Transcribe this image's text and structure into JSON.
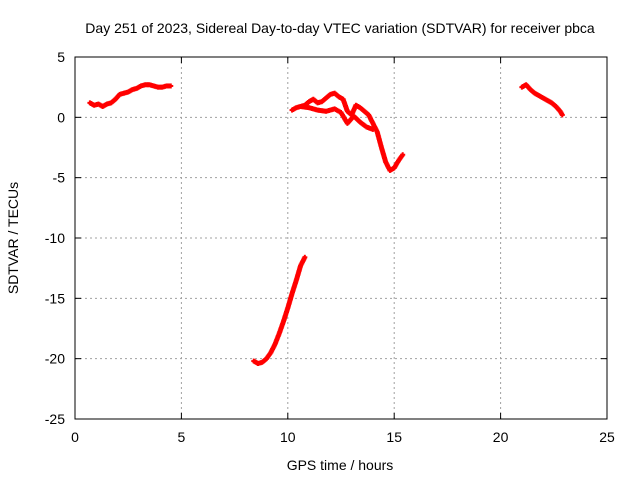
{
  "chart_data": {
    "type": "scatter",
    "title": "Day 251 of 2023, Sidereal Day-to-day VTEC variation (SDTVAR) for receiver pbca",
    "xlabel": "GPS time / hours",
    "ylabel": "SDTVAR / TECUs",
    "xlim": [
      0,
      25
    ],
    "ylim": [
      -25,
      5
    ],
    "xticks": [
      0,
      5,
      10,
      15,
      20,
      25
    ],
    "yticks": [
      5,
      0,
      -5,
      -10,
      -15,
      -20,
      -25
    ],
    "xtick_labels": [
      "0",
      "5",
      "10",
      "15",
      "20",
      "25"
    ],
    "ytick_labels": [
      "5",
      "0",
      "-5",
      "-10",
      "-15",
      "-20",
      "-25"
    ],
    "grid": true,
    "marker": "plus",
    "color": "#ff0000",
    "series": [
      {
        "name": "segment-1",
        "x": [
          0.7,
          0.9,
          1.1,
          1.3,
          1.5,
          1.7,
          1.9,
          2.1,
          2.3,
          2.5,
          2.7,
          2.9,
          3.1,
          3.3,
          3.5,
          3.7,
          3.9,
          4.1,
          4.3,
          4.5
        ],
        "y": [
          1.2,
          1.0,
          1.1,
          0.9,
          1.1,
          1.2,
          1.5,
          1.9,
          2.0,
          2.1,
          2.3,
          2.4,
          2.6,
          2.7,
          2.7,
          2.6,
          2.5,
          2.5,
          2.6,
          2.6
        ]
      },
      {
        "name": "segment-2",
        "x": [
          8.4,
          8.6,
          8.8,
          9.0,
          9.2,
          9.4,
          9.6,
          9.8,
          10.0,
          10.2,
          10.4,
          10.6,
          10.8
        ],
        "y": [
          -20.2,
          -20.4,
          -20.3,
          -20.0,
          -19.5,
          -18.8,
          -17.9,
          -16.9,
          -15.8,
          -14.6,
          -13.5,
          -12.3,
          -11.6
        ]
      },
      {
        "name": "segment-3",
        "x": [
          10.2,
          10.4,
          10.6,
          10.8,
          11.0,
          11.2,
          11.4,
          11.6,
          11.8,
          12.0,
          12.2,
          12.4,
          12.6,
          12.8,
          13.0,
          13.2,
          13.4,
          13.6,
          13.8,
          14.0,
          14.2,
          14.4,
          14.6,
          14.8,
          15.0,
          15.2,
          15.4
        ],
        "y": [
          0.6,
          0.8,
          0.9,
          1.0,
          1.3,
          1.5,
          1.2,
          1.3,
          1.6,
          1.9,
          2.0,
          1.7,
          1.5,
          0.5,
          0.2,
          1.0,
          0.8,
          0.5,
          0.2,
          -0.5,
          -1.2,
          -2.5,
          -3.7,
          -4.4,
          -4.2,
          -3.6,
          -3.1
        ]
      },
      {
        "name": "segment-3b",
        "x": [
          10.6,
          11.0,
          11.4,
          11.8,
          12.2,
          12.5,
          12.8,
          13.1,
          13.4,
          13.7,
          14.0
        ],
        "y": [
          0.9,
          0.8,
          0.6,
          0.5,
          0.7,
          0.4,
          -0.5,
          0.1,
          -0.4,
          -0.8,
          -1.0
        ]
      },
      {
        "name": "segment-4",
        "x": [
          21.0,
          21.2,
          21.4,
          21.6,
          21.8,
          22.0,
          22.2,
          22.4,
          22.6,
          22.8,
          22.9
        ],
        "y": [
          2.5,
          2.7,
          2.3,
          2.0,
          1.8,
          1.6,
          1.4,
          1.2,
          0.9,
          0.5,
          0.2
        ]
      }
    ]
  }
}
